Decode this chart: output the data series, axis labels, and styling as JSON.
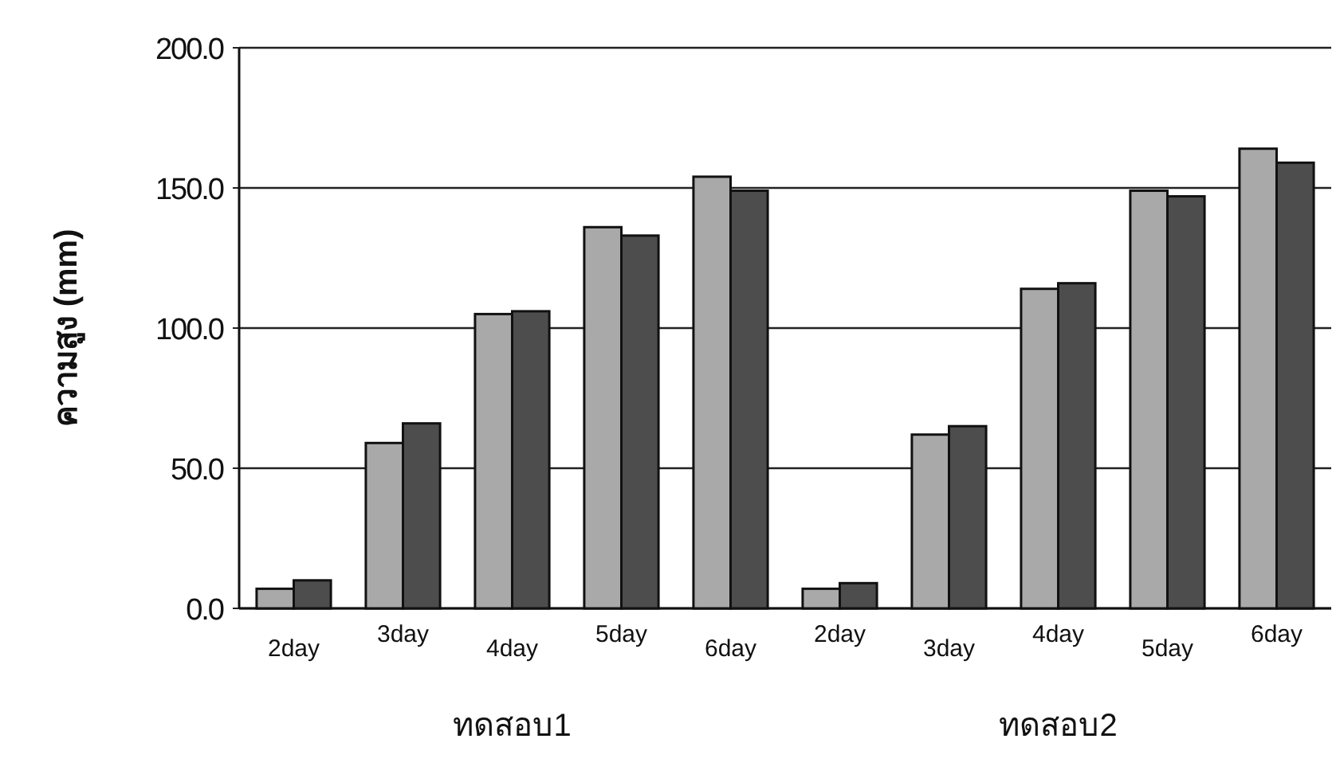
{
  "chart_data": {
    "type": "bar",
    "ylabel": "ความสูง (mm)",
    "categories": [
      "2day",
      "3day",
      "4day",
      "5day",
      "6day",
      "2day",
      "3day",
      "4day",
      "5day",
      "6day"
    ],
    "series": [
      {
        "color": "#a9a9a9",
        "values": [
          7,
          59,
          105,
          136,
          154,
          7,
          62,
          114,
          149,
          164
        ]
      },
      {
        "color": "#4d4d4d",
        "values": [
          10,
          66,
          106,
          133,
          149,
          9,
          65,
          116,
          147,
          159
        ]
      }
    ],
    "ylim": [
      0,
      200
    ],
    "yticks": [
      {
        "value": 0,
        "label": "0.0"
      },
      {
        "value": 50,
        "label": "50.0"
      },
      {
        "value": 100,
        "label": "100.0"
      },
      {
        "value": 150,
        "label": "150.0"
      },
      {
        "value": 200,
        "label": "200.0"
      }
    ],
    "grid": "y",
    "annotations": [
      "ทดสอบ1",
      "ทดสอบ2"
    ]
  }
}
